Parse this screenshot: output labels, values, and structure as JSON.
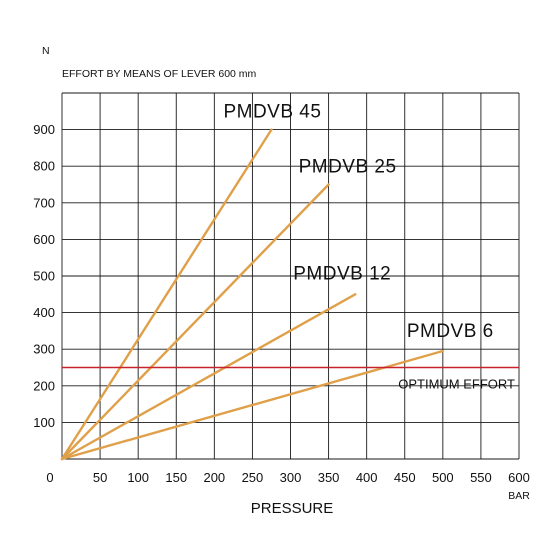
{
  "chart_data": {
    "type": "line",
    "y_unit": "N",
    "y_title": "EFFORT BY MEANS OF LEVER 600 mm",
    "xlabel": "PRESSURE",
    "x_unit": "BAR",
    "xlim": [
      0,
      600
    ],
    "ylim": [
      0,
      1000
    ],
    "x_ticks": [
      0,
      50,
      100,
      150,
      200,
      250,
      300,
      350,
      400,
      450,
      500,
      550,
      600
    ],
    "y_ticks": [
      100,
      200,
      300,
      400,
      500,
      600,
      700,
      800,
      900
    ],
    "grid": true,
    "series": [
      {
        "name": "PMDVB 45",
        "x": [
          0,
          275
        ],
        "y": [
          0,
          900
        ],
        "color": "#e0a04a"
      },
      {
        "name": "PMDVB 25",
        "x": [
          0,
          350
        ],
        "y": [
          0,
          750
        ],
        "color": "#e0a04a"
      },
      {
        "name": "PMDVB 12",
        "x": [
          0,
          385
        ],
        "y": [
          0,
          450
        ],
        "color": "#e0a04a"
      },
      {
        "name": "PMDVB 6",
        "x": [
          0,
          500
        ],
        "y": [
          0,
          295
        ],
        "color": "#e0a04a"
      }
    ],
    "reference_line": {
      "label": "OPTIMUM EFFORT",
      "y": 250,
      "color": "#c8232c"
    }
  }
}
